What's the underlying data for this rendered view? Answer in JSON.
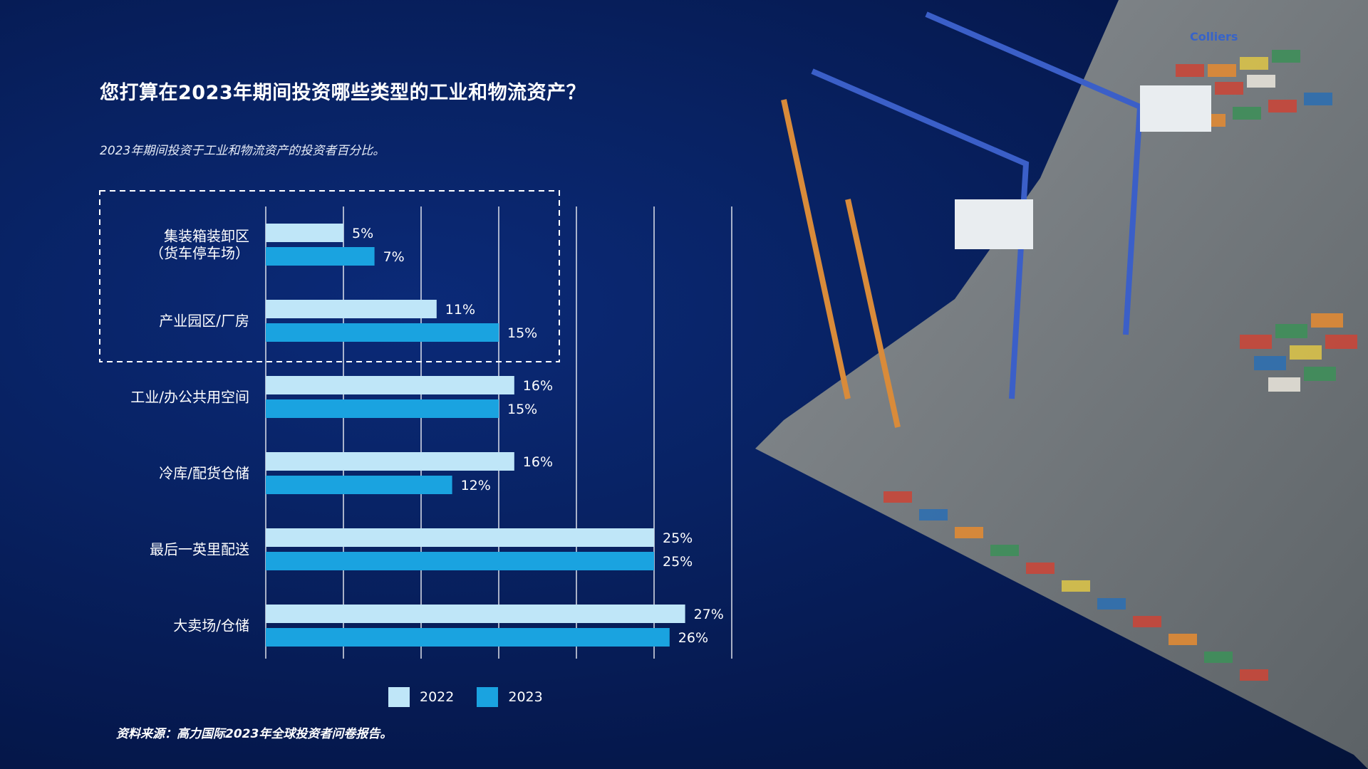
{
  "title": "您打算在2023年期间投资哪些类型的工业和物流资产？",
  "subtitle": "2023年期间投资于工业和物流资产的投资者百分比。",
  "source": "资料来源：高力国际2023年全球投资者问卷报告。",
  "brand": "Colliers",
  "colors": {
    "series_2022": "#bfe6f8",
    "series_2023": "#1aa3e0",
    "gridline": "#ffffff",
    "highlight_box": "#ffffff"
  },
  "chart_data": {
    "type": "bar",
    "orientation": "horizontal",
    "categories": [
      "集装箱装卸区\n（货车停车场）",
      "产业园区/厂房",
      "工业/办公共用空间",
      "冷库/配货仓储",
      "最后一英里配送",
      "大卖场/仓储"
    ],
    "series": [
      {
        "name": "2022",
        "values": [
          5,
          11,
          16,
          16,
          25,
          27
        ]
      },
      {
        "name": "2023",
        "values": [
          7,
          15,
          15,
          12,
          25,
          26
        ]
      }
    ],
    "value_suffix": "%",
    "xlim": [
      0,
      30
    ],
    "grid": true,
    "legend_position": "bottom",
    "highlighted_categories": [
      "集装箱装卸区\n（货车停车场）",
      "产业园区/厂房"
    ]
  }
}
